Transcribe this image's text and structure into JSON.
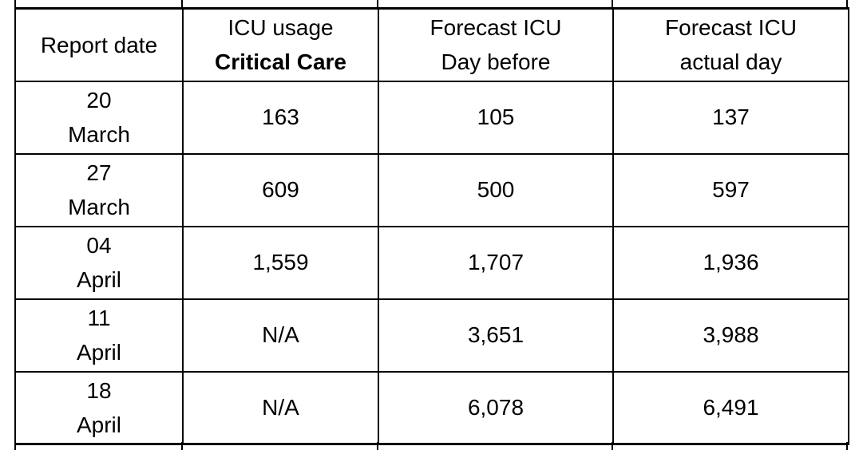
{
  "page": {
    "background_color": "#ffffff",
    "border_color": "#000000",
    "text_color": "#000000"
  },
  "table": {
    "description": "ICU usage and forecast by report date",
    "headers": [
      {
        "line1": "Report date",
        "line2": ""
      },
      {
        "line1": "ICU usage",
        "line2": "Critical Care"
      },
      {
        "line1": "Forecast ICU",
        "line2": "Day before"
      },
      {
        "line1": "Forecast ICU",
        "line2": "actual day"
      }
    ],
    "rows": [
      {
        "date": [
          "20",
          "March"
        ],
        "icu_usage": "163",
        "forecast_day_before": "105",
        "forecast_actual_day": "137"
      },
      {
        "date": [
          "27",
          "March"
        ],
        "icu_usage": "609",
        "forecast_day_before": "500",
        "forecast_actual_day": "597"
      },
      {
        "date": [
          "04",
          "April"
        ],
        "icu_usage": "1,559",
        "forecast_day_before": "1,707",
        "forecast_actual_day": "1,936"
      },
      {
        "date": [
          "11",
          "April"
        ],
        "icu_usage": "N/A",
        "forecast_day_before": "3,651",
        "forecast_actual_day": "3,988"
      },
      {
        "date": [
          "18",
          "April"
        ],
        "icu_usage": "N/A",
        "forecast_day_before": "6,078",
        "forecast_actual_day": "6,491"
      }
    ]
  }
}
